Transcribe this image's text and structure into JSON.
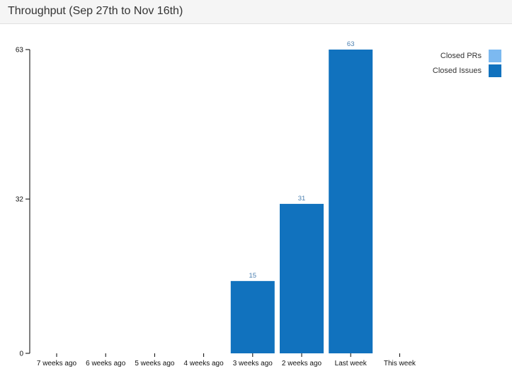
{
  "header": {
    "title": "Throughput (Sep 27th to Nov 16th)"
  },
  "colors": {
    "closed_prs": "#7cb9f0",
    "closed_issues": "#1172be",
    "value_label": "#4a7fb0"
  },
  "legend": {
    "items": [
      {
        "label": "Closed PRs",
        "color": "#7cb9f0"
      },
      {
        "label": "Closed Issues",
        "color": "#1172be"
      }
    ],
    "placement": "top-right"
  },
  "chart_data": {
    "type": "bar",
    "title": "Throughput (Sep 27th to Nov 16th)",
    "xlabel": "",
    "ylabel": "",
    "categories": [
      "7 weeks ago",
      "6 weeks ago",
      "5 weeks ago",
      "4 weeks ago",
      "3 weeks ago",
      "2 weeks ago",
      "Last week",
      "This week"
    ],
    "series": [
      {
        "name": "Closed PRs",
        "values": [
          0,
          0,
          0,
          0,
          0,
          0,
          0,
          0
        ]
      },
      {
        "name": "Closed Issues",
        "values": [
          0,
          0,
          0,
          0,
          15,
          31,
          63,
          0
        ]
      }
    ],
    "yticks": [
      0,
      32,
      63
    ],
    "ylim": [
      0,
      63
    ],
    "stacked": true,
    "grid": false
  }
}
